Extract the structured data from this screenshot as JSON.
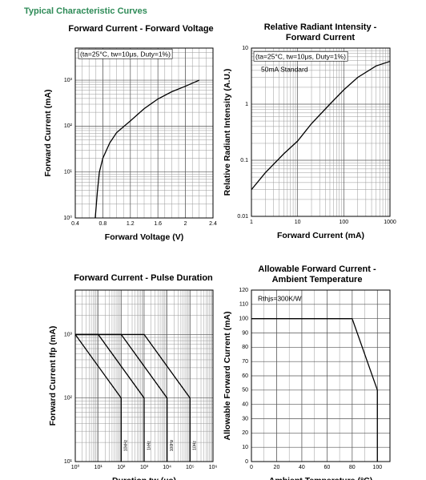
{
  "header": {
    "title": "Typical Characteristic Curves"
  },
  "chart_data": [
    {
      "type": "line",
      "title": [
        "Forward Current - Forward Voltage"
      ],
      "xlabel": "Forward Voltage (V)",
      "ylabel": "Forward Current (mA)",
      "xscale": "linear",
      "yscale": "log",
      "xlim": [
        0.4,
        2.4
      ],
      "xticks": [
        0.4,
        0.8,
        1.2,
        1.6,
        2.0,
        2.4
      ],
      "ylim": [
        1,
        5000
      ],
      "yticks": [
        {
          "value": 1,
          "label": "10⁰"
        },
        {
          "value": 10,
          "label": "10¹"
        },
        {
          "value": 100,
          "label": "10²"
        },
        {
          "value": 1000,
          "label": "10³"
        }
      ],
      "annotations": [
        "(ta=25°C, tw=10μs, Duty=1%)"
      ],
      "grid": true,
      "series": [
        {
          "color": "#000000",
          "x": [
            0.69,
            0.72,
            0.75,
            0.8,
            0.9,
            1.0,
            1.2,
            1.4,
            1.6,
            1.8,
            2.0,
            2.2
          ],
          "values": [
            1,
            3.6,
            10,
            20,
            43,
            72,
            130,
            240,
            390,
            560,
            740,
            1000
          ]
        }
      ]
    },
    {
      "type": "line",
      "title": [
        "Relative Radiant Intensity -",
        "Forward Current"
      ],
      "xlabel": "Forward Current (mA)",
      "ylabel": "Relative Radiant Intensity (A.U.)",
      "xscale": "log",
      "yscale": "log",
      "xlim": [
        1,
        1000
      ],
      "xticks": [
        1,
        10,
        100,
        1000
      ],
      "ylim": [
        0.01,
        10
      ],
      "yticks": [
        0.01,
        0.1,
        1,
        10
      ],
      "annotations": [
        "(ta=25°C, tw=10μs, Duty=1%)",
        "50mA Standard"
      ],
      "grid": true,
      "series": [
        {
          "color": "#000000",
          "x": [
            1,
            2,
            5,
            10,
            20,
            50,
            100,
            200,
            500,
            1000
          ],
          "values": [
            0.03,
            0.06,
            0.13,
            0.22,
            0.45,
            1,
            1.8,
            3.0,
            4.8,
            5.8
          ]
        }
      ]
    },
    {
      "type": "line",
      "title": [
        "Forward Current - Pulse Duration"
      ],
      "xlabel": "Duration tw (μs)",
      "ylabel": "Forward Current Ifp (mA)",
      "xscale": "log",
      "yscale": "log",
      "xlim": [
        1,
        1000000
      ],
      "xticks": [
        {
          "value": 1,
          "label": "10⁰"
        },
        {
          "value": 10,
          "label": "10¹"
        },
        {
          "value": 100,
          "label": "10²"
        },
        {
          "value": 1000,
          "label": "10³"
        },
        {
          "value": 10000,
          "label": "10⁴"
        },
        {
          "value": 100000,
          "label": "10⁵"
        },
        {
          "value": 1000000,
          "label": "10⁶"
        }
      ],
      "ylim": [
        10,
        5000
      ],
      "yticks": [
        {
          "value": 10,
          "label": "10¹"
        },
        {
          "value": 100,
          "label": "10²"
        },
        {
          "value": 1000,
          "label": "10³"
        }
      ],
      "annotations": [],
      "grid": true,
      "series": [
        {
          "name": "10kHz",
          "color": "#000000",
          "x": [
            1,
            100,
            100
          ],
          "values": [
            1000,
            100,
            10
          ]
        },
        {
          "name": "1kHz",
          "color": "#000000",
          "x": [
            1,
            10,
            1000,
            1000
          ],
          "values": [
            1000,
            1000,
            100,
            10
          ]
        },
        {
          "name": "100Hz",
          "color": "#000000",
          "x": [
            1,
            100,
            10000,
            10000
          ],
          "values": [
            1000,
            1000,
            100,
            10
          ]
        },
        {
          "name": "10Hz",
          "color": "#000000",
          "x": [
            1,
            1000,
            100000,
            100000
          ],
          "values": [
            1000,
            1000,
            100,
            10
          ]
        }
      ]
    },
    {
      "type": "line",
      "title": [
        "Allowable Forward Current -",
        "Ambient Temperature"
      ],
      "xlabel": "Ambient Temperature (°C)",
      "ylabel": "Allowable Forward Current (mA)",
      "xscale": "linear",
      "yscale": "linear",
      "xlim": [
        0,
        110
      ],
      "xticks": [
        0,
        20,
        40,
        60,
        80,
        100
      ],
      "ylim": [
        0,
        120
      ],
      "yticks": [
        0,
        10,
        20,
        30,
        40,
        50,
        60,
        70,
        80,
        90,
        100,
        110,
        120
      ],
      "annotations": [
        "Rthjs=300K/W"
      ],
      "grid": true,
      "series": [
        {
          "color": "#000000",
          "x": [
            0,
            80,
            100,
            100
          ],
          "values": [
            100,
            100,
            50,
            0
          ]
        }
      ]
    }
  ]
}
